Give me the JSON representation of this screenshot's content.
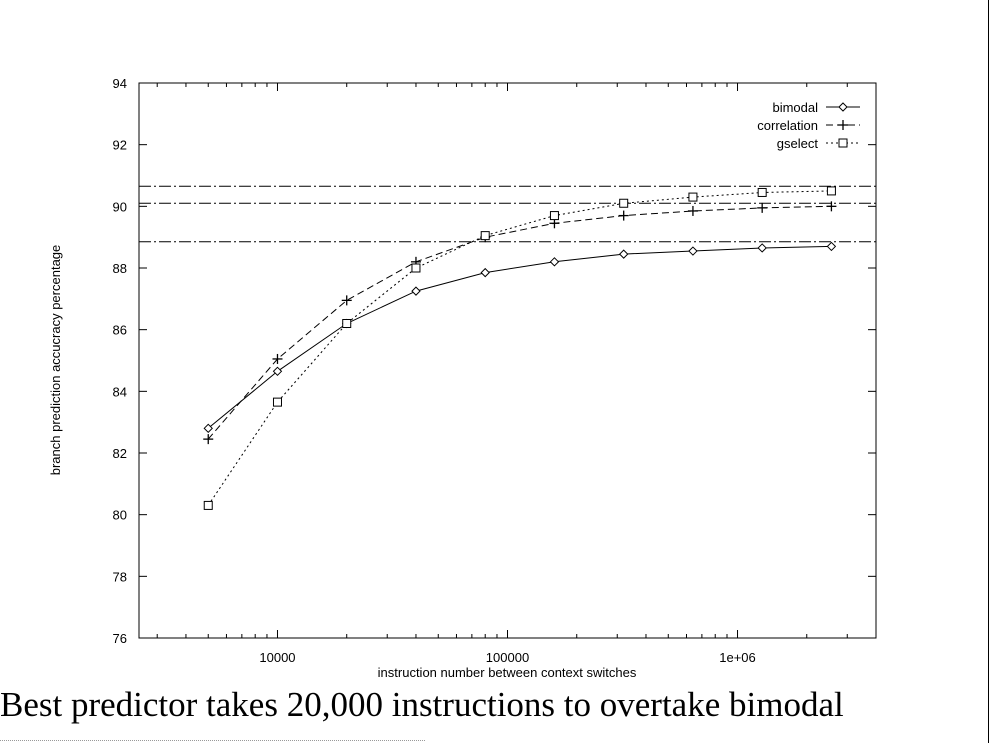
{
  "caption": "Best predictor takes 20,000 instructions to overtake bimodal",
  "chart_data": {
    "type": "line",
    "title": "",
    "xlabel": "instruction number between context switches",
    "ylabel": "branch prediction accucracy percentage",
    "x_scale": "log",
    "xlim": [
      2500,
      4000000
    ],
    "ylim": [
      76,
      94
    ],
    "y_ticks": [
      "76",
      "78",
      "80",
      "82",
      "84",
      "86",
      "88",
      "90",
      "92",
      "94"
    ],
    "x_ticks": [
      {
        "value": 10000,
        "label": "10000"
      },
      {
        "value": 100000,
        "label": "100000"
      },
      {
        "value": 1000000,
        "label": "1e+06"
      }
    ],
    "grid": false,
    "legend_position": "top-right",
    "series": [
      {
        "name": "bimodal",
        "marker": "diamond",
        "line": "solid",
        "x": [
          5000,
          10000,
          20000,
          40000,
          80000,
          160000,
          320000,
          640000,
          1280000,
          2560000
        ],
        "y": [
          82.8,
          84.65,
          86.2,
          87.25,
          87.85,
          88.2,
          88.45,
          88.55,
          88.65,
          88.7
        ]
      },
      {
        "name": "correlation",
        "marker": "plus",
        "line": "dashed",
        "x": [
          5000,
          10000,
          20000,
          40000,
          80000,
          160000,
          320000,
          640000,
          1280000,
          2560000
        ],
        "y": [
          82.45,
          85.05,
          86.95,
          88.2,
          89.0,
          89.45,
          89.7,
          89.85,
          89.95,
          90.0
        ]
      },
      {
        "name": "gselect",
        "marker": "square",
        "line": "dotted",
        "x": [
          5000,
          10000,
          20000,
          40000,
          80000,
          160000,
          320000,
          640000,
          1280000,
          2560000
        ],
        "y": [
          80.3,
          83.65,
          86.2,
          88.0,
          89.05,
          89.7,
          90.1,
          90.3,
          90.45,
          90.5
        ]
      }
    ],
    "reference_lines": [
      88.85,
      90.1,
      90.65
    ]
  }
}
